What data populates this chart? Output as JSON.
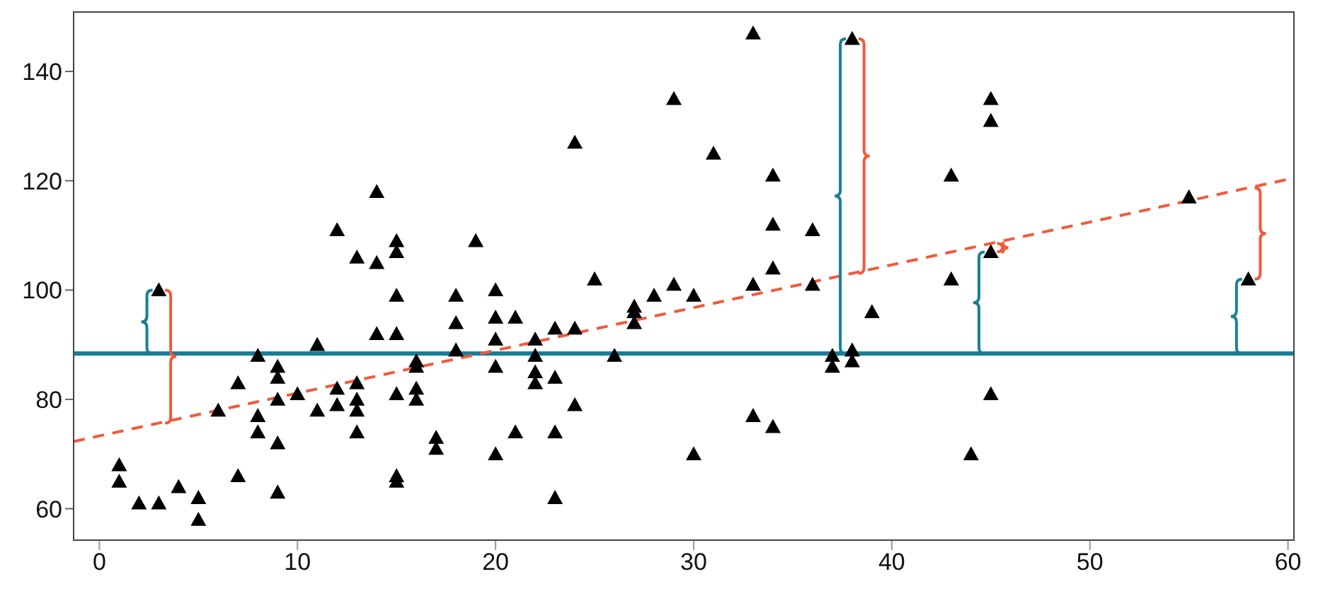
{
  "chart_data": {
    "type": "scatter",
    "marker": "triangle",
    "grid": false,
    "legend": false,
    "xlim": [
      -1.3,
      60.3
    ],
    "ylim": [
      54.25,
      151
    ],
    "xticks": [
      0,
      10,
      20,
      30,
      40,
      50,
      60
    ],
    "yticks": [
      60,
      80,
      100,
      120,
      140
    ],
    "ref_lines": [
      {
        "axis": "y",
        "value": 88.4,
        "color": "#1a7f95"
      }
    ],
    "series": [
      {
        "color": "#000000",
        "x": [
          1,
          1,
          2,
          3,
          4,
          5,
          5,
          6,
          7,
          7,
          8,
          8,
          8,
          9,
          9,
          9,
          9,
          9,
          10,
          11,
          11,
          12,
          12,
          12,
          13,
          13,
          13,
          13,
          13,
          14,
          14,
          14,
          15,
          15,
          15,
          15,
          15,
          15,
          15,
          16,
          16,
          16,
          16,
          17,
          17,
          18,
          18,
          18,
          19,
          20,
          20,
          20,
          20,
          20,
          21,
          21,
          22,
          22,
          22,
          22,
          23,
          23,
          23,
          23,
          24,
          24,
          24,
          25,
          26,
          27,
          27,
          27,
          28,
          29,
          29,
          30,
          30,
          31,
          33,
          33,
          33,
          34,
          34,
          34,
          34,
          36,
          36,
          37,
          37,
          38,
          38,
          39,
          43,
          43,
          44,
          45,
          45,
          45,
          55
        ],
        "values": [
          68,
          65,
          61,
          61,
          64,
          62,
          58,
          78,
          83,
          66,
          88,
          77,
          74,
          86,
          84,
          80,
          72,
          63,
          81,
          90,
          78,
          111,
          82,
          79,
          106,
          83,
          80,
          78,
          74,
          118,
          105,
          92,
          109,
          107,
          99,
          92,
          81,
          66,
          65,
          87,
          86,
          82,
          80,
          73,
          71,
          99,
          94,
          89,
          109,
          100,
          95,
          91,
          86,
          70,
          95,
          74,
          91,
          88,
          85,
          83,
          93,
          84,
          74,
          62,
          127,
          93,
          79,
          102,
          88,
          97,
          96,
          94,
          99,
          135,
          101,
          99,
          70,
          125,
          147,
          101,
          77,
          121,
          112,
          104,
          75,
          111,
          101,
          88,
          86,
          89,
          87,
          96,
          121,
          102,
          70,
          135,
          131,
          81,
          117
        ]
      },
      {
        "color": "#000000",
        "x": [
          3,
          38,
          45,
          58
        ],
        "values": [
          100,
          146,
          107,
          102
        ]
      },
      {
        "type": "line",
        "color": "#f05a3c",
        "line_style": "dashed",
        "marker": "none",
        "x": [
          -1.3,
          60.3
        ],
        "values": [
          72.3,
          120.5
        ]
      }
    ]
  }
}
